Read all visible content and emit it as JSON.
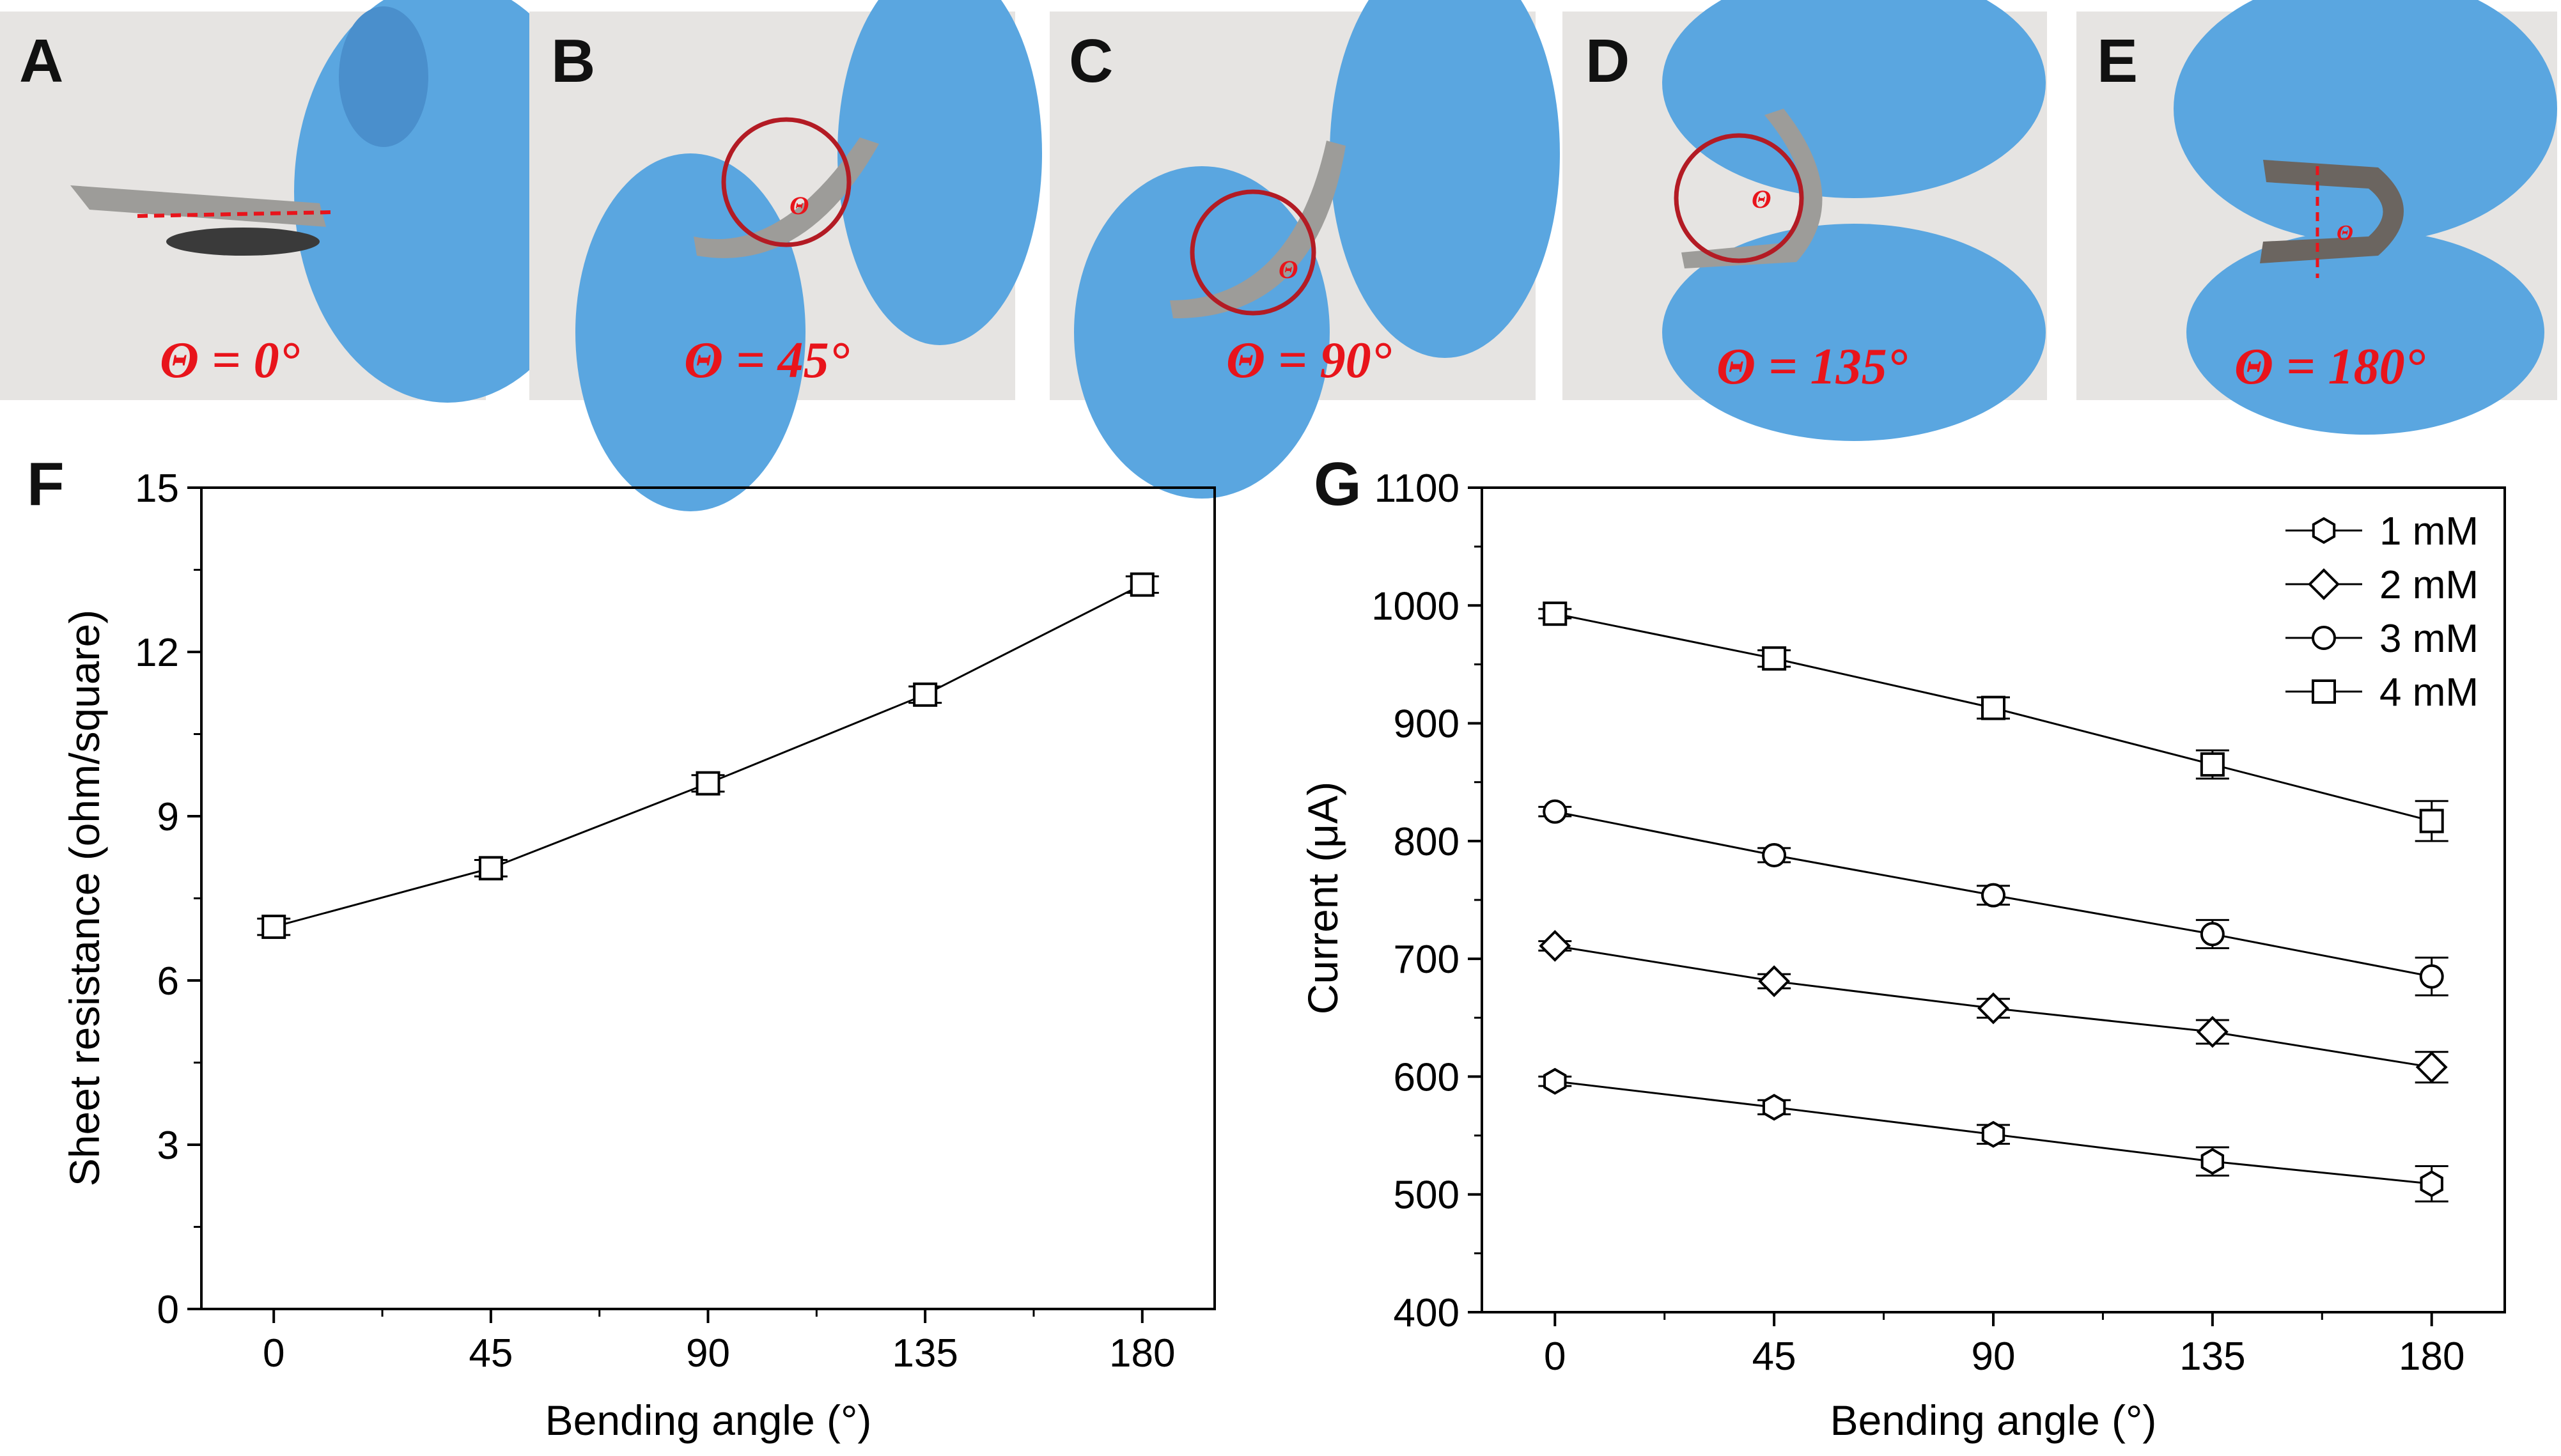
{
  "photos": [
    {
      "letter": "A",
      "caption": "Θ = 0°",
      "angle": 0
    },
    {
      "letter": "B",
      "caption": "Θ = 45°",
      "angle": 45
    },
    {
      "letter": "C",
      "caption": "Θ = 90°",
      "angle": 90
    },
    {
      "letter": "D",
      "caption": "Θ = 135°",
      "angle": 135
    },
    {
      "letter": "E",
      "caption": "Θ = 180°",
      "angle": 180
    }
  ],
  "photo_angle_symbol": "Θ",
  "colors": {
    "caption": "#e8141b",
    "circle": "#b31b24",
    "glove": "#5aa6e0",
    "background_photo": "#e6e4e2"
  },
  "chart_data": [
    {
      "panel": "F",
      "type": "line",
      "x": [
        0,
        45,
        90,
        135,
        180
      ],
      "series": [
        {
          "values": [
            6.98,
            8.05,
            9.6,
            11.22,
            13.23
          ],
          "errors": [
            0.15,
            0.15,
            0.15,
            0.15,
            0.15
          ],
          "marker": "square"
        }
      ],
      "xlabel": "Bending angle (°)",
      "ylabel": "Sheet resistance (ohm/square)",
      "xticks": [
        "0",
        "45",
        "90",
        "135",
        "180"
      ],
      "yticks": [
        "0",
        "3",
        "6",
        "9",
        "12",
        "15"
      ],
      "xlim": [
        -15,
        195
      ],
      "ylim": [
        0,
        15
      ],
      "grid": false,
      "legend": "none"
    },
    {
      "panel": "G",
      "type": "line",
      "x": [
        0,
        45,
        90,
        135,
        180
      ],
      "series": [
        {
          "name": "1 mM",
          "marker": "hexagon",
          "values": [
            596,
            574,
            551,
            528,
            509
          ],
          "errors": [
            4,
            6,
            8,
            12,
            15
          ]
        },
        {
          "name": "2 mM",
          "marker": "diamond",
          "values": [
            711,
            681,
            658,
            638,
            608
          ],
          "errors": [
            4,
            6,
            8,
            10,
            13
          ]
        },
        {
          "name": "3 mM",
          "marker": "circle",
          "values": [
            825,
            788,
            754,
            721,
            685
          ],
          "errors": [
            4,
            6,
            8,
            12,
            16
          ]
        },
        {
          "name": "4 mM",
          "marker": "square",
          "values": [
            993,
            955,
            913,
            865,
            817
          ],
          "errors": [
            4,
            7,
            9,
            12,
            17
          ]
        }
      ],
      "xlabel": "Bending angle (°)",
      "ylabel": "Current (μA)",
      "xticks": [
        "0",
        "45",
        "90",
        "135",
        "180"
      ],
      "yticks": [
        "400",
        "500",
        "600",
        "700",
        "800",
        "900",
        "1000",
        "1100"
      ],
      "xlim": [
        -15,
        195
      ],
      "ylim": [
        400,
        1100
      ],
      "grid": false,
      "legend": "top-right"
    }
  ]
}
